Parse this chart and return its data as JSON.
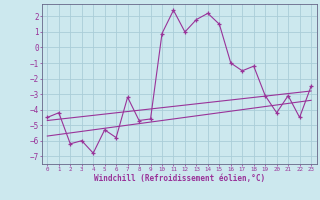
{
  "xlabel": "Windchill (Refroidissement éolien,°C)",
  "xlim": [
    -0.5,
    23.5
  ],
  "ylim": [
    -7.5,
    2.8
  ],
  "yticks": [
    2,
    1,
    0,
    -1,
    -2,
    -3,
    -4,
    -5,
    -6,
    -7
  ],
  "xticks": [
    0,
    1,
    2,
    3,
    4,
    5,
    6,
    7,
    8,
    9,
    10,
    11,
    12,
    13,
    14,
    15,
    16,
    17,
    18,
    19,
    20,
    21,
    22,
    23
  ],
  "bg_color": "#cce8ee",
  "grid_color": "#aacdd8",
  "line_color": "#993399",
  "spine_color": "#666688",
  "line1_x": [
    0,
    1,
    2,
    3,
    4,
    5,
    6,
    7,
    8,
    9,
    10,
    11,
    12,
    13,
    14,
    15,
    16,
    17,
    18,
    19,
    20,
    21,
    22,
    23
  ],
  "line1_y": [
    -4.5,
    -4.2,
    -6.2,
    -6.0,
    -6.8,
    -5.3,
    -5.8,
    -3.2,
    -4.7,
    -4.6,
    0.9,
    2.4,
    1.0,
    1.8,
    2.2,
    1.5,
    -1.0,
    -1.5,
    -1.2,
    -3.1,
    -4.2,
    -3.1,
    -4.5,
    -2.5
  ],
  "trend1_x": [
    0,
    23
  ],
  "trend1_y": [
    -4.7,
    -2.8
  ],
  "trend2_x": [
    0,
    23
  ],
  "trend2_y": [
    -5.7,
    -3.4
  ]
}
